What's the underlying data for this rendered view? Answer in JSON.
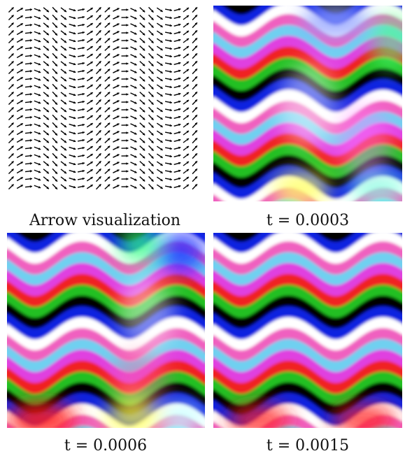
{
  "panels": [
    {
      "caption": "Arrow visualization"
    },
    {
      "caption": "t = 0.0003"
    },
    {
      "caption": "t = 0.0006"
    },
    {
      "caption": "t = 0.0015"
    }
  ]
}
